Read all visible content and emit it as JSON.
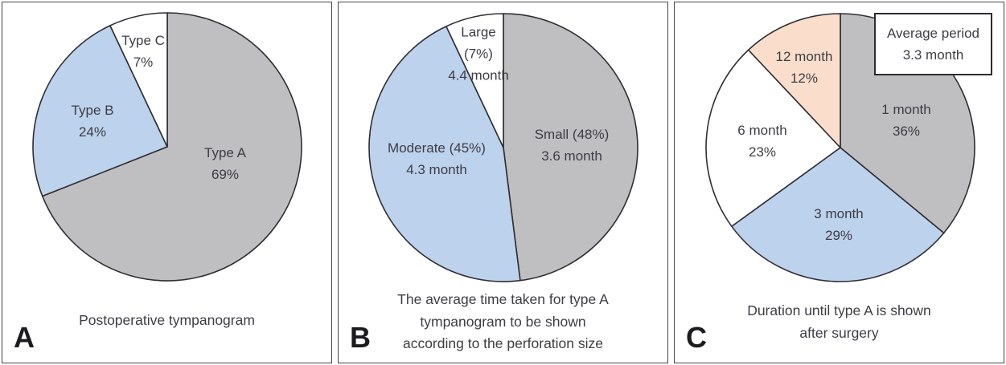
{
  "colors": {
    "gray": "#bfbfc1",
    "blue": "#bdd2ec",
    "white": "#ffffff",
    "peach": "#fadecb",
    "stroke": "#2e2e34",
    "text": "#3d3d45"
  },
  "chart_data": [
    {
      "type": "pie",
      "panel_letter": "A",
      "caption_lines": [
        "Postoperative tympanogram"
      ],
      "start_angle_deg": 0,
      "direction": "clockwise",
      "slices": [
        {
          "label": "Type A",
          "value_pct": 69,
          "color": "gray",
          "lines": [
            "Type A",
            "69%"
          ]
        },
        {
          "label": "Type B",
          "value_pct": 24,
          "color": "blue",
          "lines": [
            "Type B",
            "24%"
          ]
        },
        {
          "label": "Type C",
          "value_pct": 7,
          "color": "white",
          "lines": [
            "Type C",
            "7%"
          ]
        }
      ]
    },
    {
      "type": "pie",
      "panel_letter": "B",
      "caption_lines": [
        "The average time taken for type A",
        "tympanogram to be shown",
        "according to the perforation size"
      ],
      "start_angle_deg": 0,
      "direction": "clockwise",
      "slices": [
        {
          "label": "Small",
          "value_pct": 48,
          "avg_month": 3.6,
          "color": "gray",
          "lines": [
            "Small (48%)",
            "3.6 month"
          ]
        },
        {
          "label": "Moderate",
          "value_pct": 45,
          "avg_month": 4.3,
          "color": "blue",
          "lines": [
            "Moderate (45%)",
            "4.3 month"
          ]
        },
        {
          "label": "Large",
          "value_pct": 7,
          "avg_month": 4.4,
          "color": "white",
          "lines": [
            "Large",
            "(7%)",
            "4.4 month"
          ]
        }
      ]
    },
    {
      "type": "pie",
      "panel_letter": "C",
      "caption_lines": [
        "Duration until type A is shown",
        "after surgery"
      ],
      "legend_position": "top-right",
      "legend_box_lines": [
        "Average period",
        "3.3 month"
      ],
      "start_angle_deg": 0,
      "direction": "clockwise",
      "slices": [
        {
          "label": "1 month",
          "value_pct": 36,
          "color": "gray",
          "lines": [
            "1 month",
            "36%"
          ]
        },
        {
          "label": "3 month",
          "value_pct": 29,
          "color": "blue",
          "lines": [
            "3 month",
            "29%"
          ]
        },
        {
          "label": "6 month",
          "value_pct": 23,
          "color": "white",
          "lines": [
            "6 month",
            "23%"
          ]
        },
        {
          "label": "12 month",
          "value_pct": 12,
          "color": "peach",
          "lines": [
            "12 month",
            "12%"
          ]
        }
      ]
    }
  ]
}
